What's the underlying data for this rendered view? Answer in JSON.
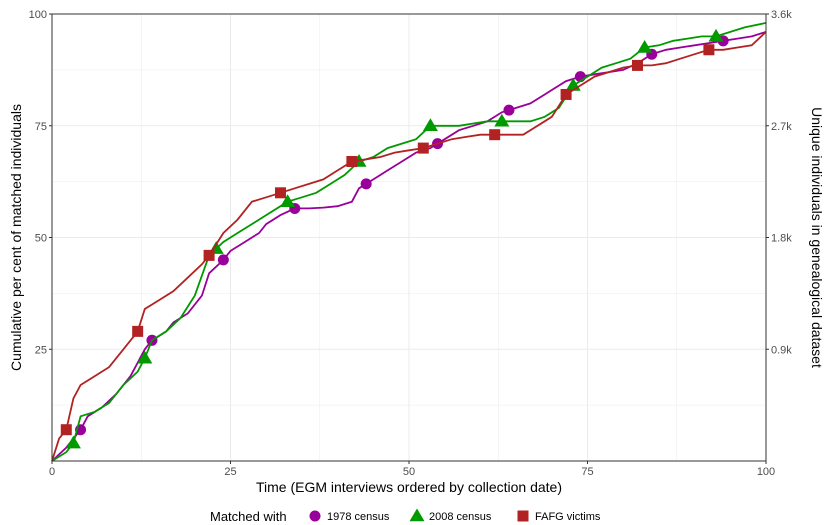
{
  "chart_data": {
    "type": "line",
    "title": "",
    "xlabel": "Time (EGM interviews ordered by collection date)",
    "ylabel": "Cumulative per cent of matched individuals",
    "y2label": "Unique individuals in genealogical dataset",
    "xlim": [
      0,
      100
    ],
    "ylim": [
      0,
      100
    ],
    "y2lim": [
      0,
      3600
    ],
    "x_ticks": [
      "0",
      "25",
      "50",
      "75",
      "100"
    ],
    "y_ticks": [
      "25",
      "50",
      "75",
      "100"
    ],
    "y2_ticks": [
      "0.9k",
      "1.8k",
      "2.7k",
      "3.6k"
    ],
    "grid": true,
    "legend_title": "Matched with",
    "legend_position": "bottom",
    "series": [
      {
        "name": "1978 census",
        "color": "#990099",
        "marker": "circle",
        "points": [
          [
            0,
            0
          ],
          [
            2,
            3
          ],
          [
            4,
            7
          ],
          [
            5,
            10
          ],
          [
            7,
            12
          ],
          [
            9,
            15
          ],
          [
            11,
            19
          ],
          [
            12,
            22
          ],
          [
            13,
            25
          ],
          [
            14,
            27
          ],
          [
            16,
            29
          ],
          [
            17,
            31
          ],
          [
            19,
            33
          ],
          [
            21,
            37
          ],
          [
            22,
            42
          ],
          [
            24,
            45
          ],
          [
            25,
            47
          ],
          [
            27,
            49
          ],
          [
            29,
            51
          ],
          [
            30,
            53
          ],
          [
            32,
            55
          ],
          [
            34,
            56.5
          ],
          [
            36,
            56.5
          ],
          [
            38,
            56.7
          ],
          [
            40,
            57
          ],
          [
            42,
            58
          ],
          [
            43,
            61
          ],
          [
            45,
            63
          ],
          [
            47,
            65
          ],
          [
            49,
            67
          ],
          [
            51,
            69
          ],
          [
            53,
            70
          ],
          [
            55,
            72
          ],
          [
            57,
            74
          ],
          [
            59,
            75
          ],
          [
            61,
            76
          ],
          [
            63,
            78
          ],
          [
            65,
            79
          ],
          [
            67,
            80
          ],
          [
            69,
            82
          ],
          [
            70,
            83
          ],
          [
            72,
            85
          ],
          [
            74,
            86
          ],
          [
            76,
            86.5
          ],
          [
            78,
            87
          ],
          [
            80,
            87.5
          ],
          [
            82,
            89
          ],
          [
            84,
            91
          ],
          [
            86,
            92
          ],
          [
            88,
            92.5
          ],
          [
            90,
            93
          ],
          [
            92,
            93.5
          ],
          [
            94,
            94
          ],
          [
            96,
            94.5
          ],
          [
            98,
            95
          ],
          [
            100,
            96
          ]
        ],
        "markers_x": [
          4,
          14,
          24,
          34,
          44,
          54,
          64,
          74,
          84,
          94
        ]
      },
      {
        "name": "2008 census",
        "color": "#009900",
        "marker": "triangle",
        "points": [
          [
            0,
            0
          ],
          [
            2,
            2
          ],
          [
            3,
            4
          ],
          [
            4,
            10
          ],
          [
            6,
            11
          ],
          [
            8,
            13
          ],
          [
            10,
            17
          ],
          [
            12,
            20
          ],
          [
            13,
            23
          ],
          [
            14,
            27
          ],
          [
            16,
            29
          ],
          [
            18,
            32
          ],
          [
            20,
            37
          ],
          [
            22,
            46
          ],
          [
            24,
            49
          ],
          [
            26,
            51
          ],
          [
            28,
            53
          ],
          [
            30,
            55
          ],
          [
            32,
            57
          ],
          [
            33,
            58
          ],
          [
            35,
            59
          ],
          [
            37,
            60
          ],
          [
            39,
            62
          ],
          [
            41,
            64
          ],
          [
            43,
            67
          ],
          [
            45,
            68
          ],
          [
            47,
            70
          ],
          [
            49,
            71
          ],
          [
            51,
            72
          ],
          [
            53,
            75
          ],
          [
            55,
            75
          ],
          [
            57,
            75
          ],
          [
            59,
            75.5
          ],
          [
            61,
            76
          ],
          [
            63,
            76
          ],
          [
            65,
            76
          ],
          [
            67,
            76
          ],
          [
            69,
            77
          ],
          [
            71,
            79
          ],
          [
            73,
            84
          ],
          [
            75,
            86
          ],
          [
            77,
            88
          ],
          [
            79,
            89
          ],
          [
            81,
            90
          ],
          [
            83,
            92.5
          ],
          [
            85,
            93
          ],
          [
            87,
            94
          ],
          [
            89,
            94.5
          ],
          [
            91,
            95
          ],
          [
            93,
            95
          ],
          [
            95,
            96
          ],
          [
            97,
            97
          ],
          [
            100,
            98
          ]
        ],
        "markers_x": [
          3,
          13,
          23,
          33,
          43,
          53,
          63,
          73,
          83,
          93
        ]
      },
      {
        "name": "FAFG victims",
        "color": "#b22222",
        "marker": "square",
        "points": [
          [
            0,
            0
          ],
          [
            1,
            5
          ],
          [
            2,
            7
          ],
          [
            3,
            14
          ],
          [
            4,
            17
          ],
          [
            6,
            19
          ],
          [
            8,
            21
          ],
          [
            10,
            25
          ],
          [
            12,
            29
          ],
          [
            13,
            34
          ],
          [
            15,
            36
          ],
          [
            17,
            38
          ],
          [
            19,
            41
          ],
          [
            21,
            44
          ],
          [
            22,
            46
          ],
          [
            24,
            51
          ],
          [
            26,
            54
          ],
          [
            28,
            58
          ],
          [
            30,
            59
          ],
          [
            32,
            60
          ],
          [
            34,
            61
          ],
          [
            36,
            62
          ],
          [
            38,
            63
          ],
          [
            40,
            65
          ],
          [
            42,
            67
          ],
          [
            44,
            67.5
          ],
          [
            46,
            68
          ],
          [
            48,
            69
          ],
          [
            50,
            69.5
          ],
          [
            52,
            70
          ],
          [
            54,
            71
          ],
          [
            56,
            72
          ],
          [
            58,
            72.5
          ],
          [
            60,
            73
          ],
          [
            62,
            73
          ],
          [
            64,
            73
          ],
          [
            66,
            73
          ],
          [
            68,
            75
          ],
          [
            70,
            77
          ],
          [
            72,
            82
          ],
          [
            74,
            84
          ],
          [
            76,
            86
          ],
          [
            78,
            87
          ],
          [
            80,
            88
          ],
          [
            82,
            88.5
          ],
          [
            84,
            88.5
          ],
          [
            86,
            89
          ],
          [
            88,
            90
          ],
          [
            90,
            91
          ],
          [
            92,
            92
          ],
          [
            94,
            92
          ],
          [
            96,
            92.5
          ],
          [
            98,
            93
          ],
          [
            100,
            96
          ]
        ],
        "markers_x": [
          2,
          12,
          22,
          32,
          42,
          52,
          62,
          72,
          82,
          92
        ]
      }
    ]
  }
}
